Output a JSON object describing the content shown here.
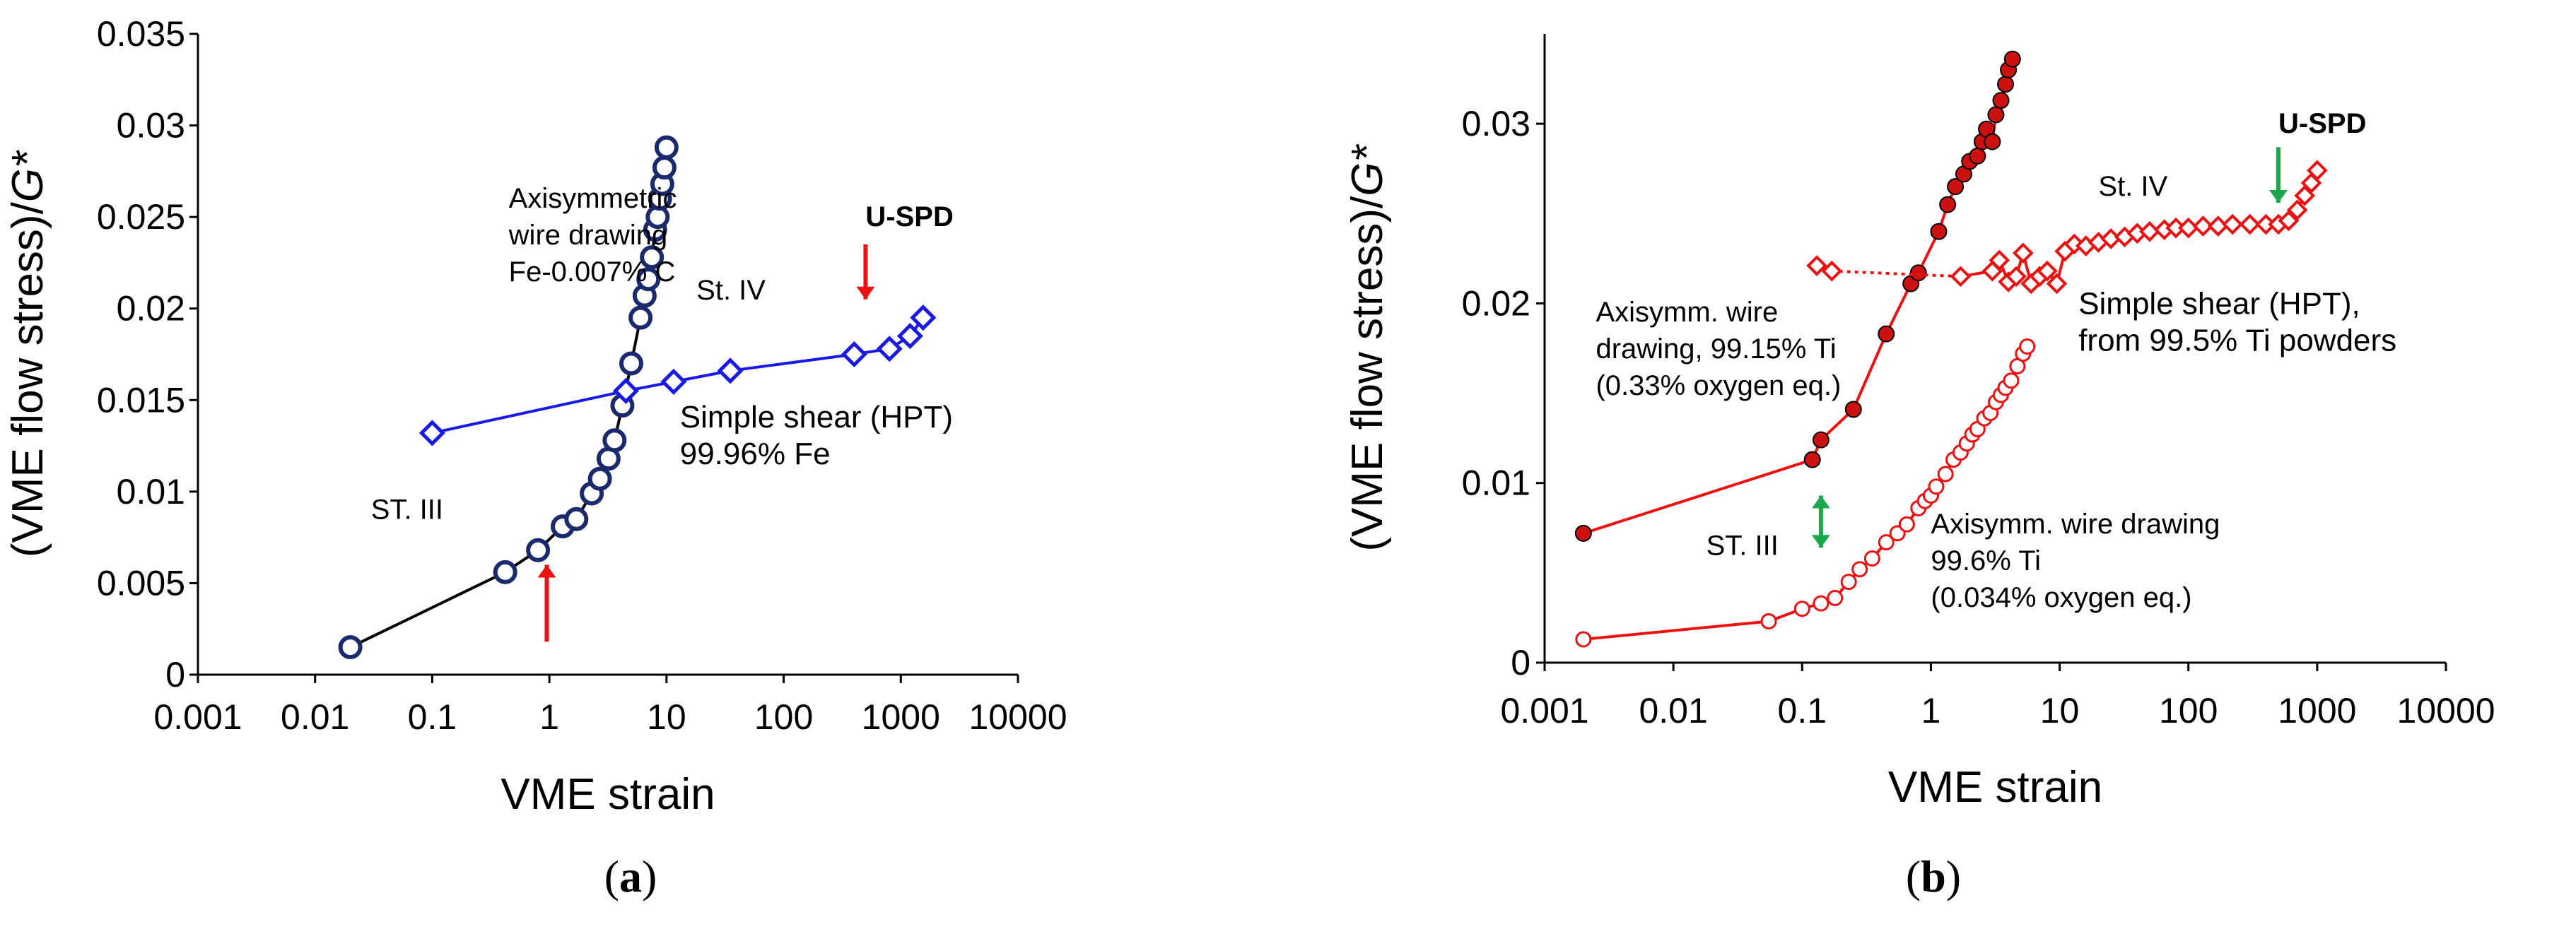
{
  "chart_data": [
    {
      "id": "a",
      "type": "line",
      "xscale": "log",
      "xlabel": "VME strain",
      "ylabel_prefix": "(VME flow stress)/",
      "ylabel_italic": "G*",
      "xlim": [
        0.001,
        10000
      ],
      "ylim": [
        0,
        0.035
      ],
      "xticks": [
        0.001,
        0.01,
        0.1,
        1,
        10,
        100,
        1000,
        10000
      ],
      "xtick_labels": [
        "0.001",
        "0.01",
        "0.1",
        "1",
        "10",
        "100",
        "1000",
        "10000"
      ],
      "yticks": [
        0,
        0.005,
        0.01,
        0.015,
        0.02,
        0.025,
        0.03,
        0.035
      ],
      "ytick_labels": [
        "0",
        "0.005",
        "0.01",
        "0.015",
        "0.02",
        "0.025",
        "0.03",
        "0.035"
      ],
      "series": [
        {
          "name": "Axisymmetric wire drawing Fe-0.007% C",
          "color": "#1a2a6c",
          "line_color": "#000000",
          "marker": "circle-open",
          "line_style": "solid",
          "x": [
            0.02,
            0.42,
            0.8,
            1.3,
            1.7,
            2.3,
            2.7,
            3.2,
            3.6,
            4.2,
            5.0,
            6.0,
            6.5,
            7.0,
            7.5,
            8.0,
            8.4,
            8.8,
            9.2,
            9.6,
            10.0
          ],
          "y": [
            0.0015,
            0.0056,
            0.0068,
            0.0081,
            0.0085,
            0.0099,
            0.0107,
            0.0118,
            0.0128,
            0.0147,
            0.017,
            0.0195,
            0.0207,
            0.0216,
            0.0228,
            0.0243,
            0.025,
            0.026,
            0.0268,
            0.0277,
            0.0288
          ]
        },
        {
          "name": "Simple shear (HPT) 99.96% Fe",
          "color": "#1a1ae6",
          "line_color": "#1a1ae6",
          "marker": "diamond-open",
          "line_style": "solid",
          "x": [
            0.1,
            4.5,
            11.5,
            35,
            400,
            800,
            1200,
            1550
          ],
          "y": [
            0.0132,
            0.0155,
            0.016,
            0.0166,
            0.0175,
            0.0178,
            0.0185,
            0.0195
          ]
        }
      ],
      "annotations": [
        {
          "lines": [
            "Axisymmetric",
            "wire drawing",
            "Fe-0.007% C"
          ],
          "x": 0.45,
          "y": 0.0255,
          "style": "normal"
        },
        {
          "lines": [
            "St. IV"
          ],
          "x": 18,
          "y": 0.0205,
          "style": "normal"
        },
        {
          "lines": [
            "ST. III"
          ],
          "x": 0.03,
          "y": 0.0085,
          "style": "normal"
        },
        {
          "lines": [
            "U-SPD"
          ],
          "x": 500,
          "y": 0.0245,
          "style": "bold"
        },
        {
          "lines": [
            "Simple shear (HPT)",
            "99.96% Fe"
          ],
          "x": 13,
          "y": 0.0135,
          "style": "blue"
        }
      ],
      "arrows": [
        {
          "x": 0.95,
          "y_tail": 0.0018,
          "y_head": 0.006,
          "direction": "up",
          "color": "#ee1111"
        },
        {
          "x": 500,
          "y_tail": 0.0235,
          "y_head": 0.0205,
          "direction": "down",
          "color": "#ee1111"
        }
      ],
      "panel_label": "(a)"
    },
    {
      "id": "b",
      "type": "line",
      "xscale": "log",
      "xlabel": "VME strain",
      "ylabel_prefix": "(VME flow stress)/",
      "ylabel_italic": "G*",
      "xlim": [
        0.001,
        10000
      ],
      "ylim": [
        0,
        0.035
      ],
      "xticks": [
        0.001,
        0.01,
        0.1,
        1,
        10,
        100,
        1000,
        10000
      ],
      "xtick_labels": [
        "0.001",
        "0.01",
        "0.1",
        "1",
        "10",
        "100",
        "1000",
        "10000"
      ],
      "yticks": [
        0,
        0.01,
        0.02,
        0.03
      ],
      "ytick_labels": [
        "0",
        "0.01",
        "0.02",
        "0.03"
      ],
      "series": [
        {
          "name": "Axisymm. wire drawing, 99.15% Ti (0.33% oxygen eq.)",
          "color": "#cc1111",
          "line_color": "#ee1111",
          "marker": "circle-filled",
          "line_style": "solid",
          "x": [
            0.002,
            0.12,
            0.14,
            0.25,
            0.45,
            0.7,
            0.8,
            1.15,
            1.35,
            1.55,
            1.8,
            2.0,
            2.3,
            2.5,
            2.7,
            3.0,
            3.2,
            3.5,
            3.8,
            4.0,
            4.3
          ],
          "y": [
            0.0072,
            0.0113,
            0.0124,
            0.0141,
            0.0183,
            0.0211,
            0.0217,
            0.024,
            0.0255,
            0.0265,
            0.0272,
            0.0279,
            0.0282,
            0.029,
            0.0297,
            0.029,
            0.0305,
            0.0313,
            0.0322,
            0.033,
            0.0336
          ]
        },
        {
          "name": "Simple shear (HPT), from 99.5% Ti powders",
          "color": "#ee1111",
          "line_color": "#ee1111",
          "marker": "diamond-open",
          "line_style": "dotted-then-solid",
          "x": [
            0.13,
            0.17,
            1.7,
            3.0,
            3.4,
            4.0,
            4.6,
            5.2,
            6.0,
            7.0,
            8.0,
            9.5,
            11,
            13,
            16,
            20,
            25,
            32,
            40,
            50,
            65,
            80,
            100,
            130,
            170,
            220,
            300,
            400,
            500,
            600,
            700,
            800,
            900,
            1000
          ],
          "y": [
            0.0221,
            0.0218,
            0.0215,
            0.0218,
            0.0224,
            0.0212,
            0.0215,
            0.0228,
            0.0211,
            0.0215,
            0.0218,
            0.0211,
            0.0229,
            0.0233,
            0.0232,
            0.0234,
            0.0236,
            0.0237,
            0.0239,
            0.024,
            0.0241,
            0.0242,
            0.0242,
            0.0243,
            0.0243,
            0.0244,
            0.0244,
            0.0244,
            0.0244,
            0.0246,
            0.0252,
            0.026,
            0.0267,
            0.0274
          ]
        },
        {
          "name": "Axisymm. wire drawing 99.6% Ti (0.034% oxygen eq.)",
          "color": "#ee1111",
          "line_color": "#ee1111",
          "marker": "circle-open",
          "line_style": "solid",
          "x": [
            0.002,
            0.055,
            0.1,
            0.14,
            0.18,
            0.23,
            0.28,
            0.35,
            0.45,
            0.55,
            0.65,
            0.8,
            0.9,
            1.0,
            1.1,
            1.3,
            1.5,
            1.7,
            1.9,
            2.1,
            2.3,
            2.6,
            2.9,
            3.2,
            3.5,
            3.8,
            4.2,
            4.7,
            5.2,
            5.6
          ],
          "y": [
            0.0013,
            0.0023,
            0.003,
            0.0033,
            0.0036,
            0.0045,
            0.0052,
            0.0058,
            0.0067,
            0.0072,
            0.0077,
            0.0086,
            0.009,
            0.0093,
            0.0098,
            0.0105,
            0.0113,
            0.0117,
            0.0122,
            0.0127,
            0.013,
            0.0136,
            0.0139,
            0.0145,
            0.0149,
            0.0153,
            0.0157,
            0.0165,
            0.0172,
            0.0176
          ]
        }
      ],
      "annotations": [
        {
          "lines": [
            "St. IV"
          ],
          "x": 20,
          "y": 0.026,
          "style": "normal"
        },
        {
          "lines": [
            "U-SPD"
          ],
          "x": 500,
          "y": 0.0295,
          "style": "bold"
        },
        {
          "lines": [
            "ST. III"
          ],
          "x": 0.018,
          "y": 0.006,
          "style": "normal"
        },
        {
          "lines": [
            "Axisymm. wire",
            "drawing, 99.15% Ti",
            "(0.33% oxygen eq.)"
          ],
          "x": 0.0025,
          "y": 0.019,
          "style": "normal"
        },
        {
          "lines": [
            "Simple shear (HPT),",
            "from 99.5% Ti powders"
          ],
          "x": 14,
          "y": 0.0194,
          "style": "red"
        },
        {
          "lines": [
            "Axisymm. wire drawing",
            "99.6% Ti",
            "(0.034% oxygen eq.)"
          ],
          "x": 1.0,
          "y": 0.0072,
          "style": "normal"
        }
      ],
      "arrows": [
        {
          "x": 500,
          "y_tail": 0.0287,
          "y_head": 0.0256,
          "direction": "down",
          "color": "#1aa84a"
        },
        {
          "x": 0.14,
          "y_tail": 0.0064,
          "y_head": 0.0093,
          "direction": "both",
          "color": "#1aa84a"
        }
      ],
      "panel_label": "(b)"
    }
  ]
}
